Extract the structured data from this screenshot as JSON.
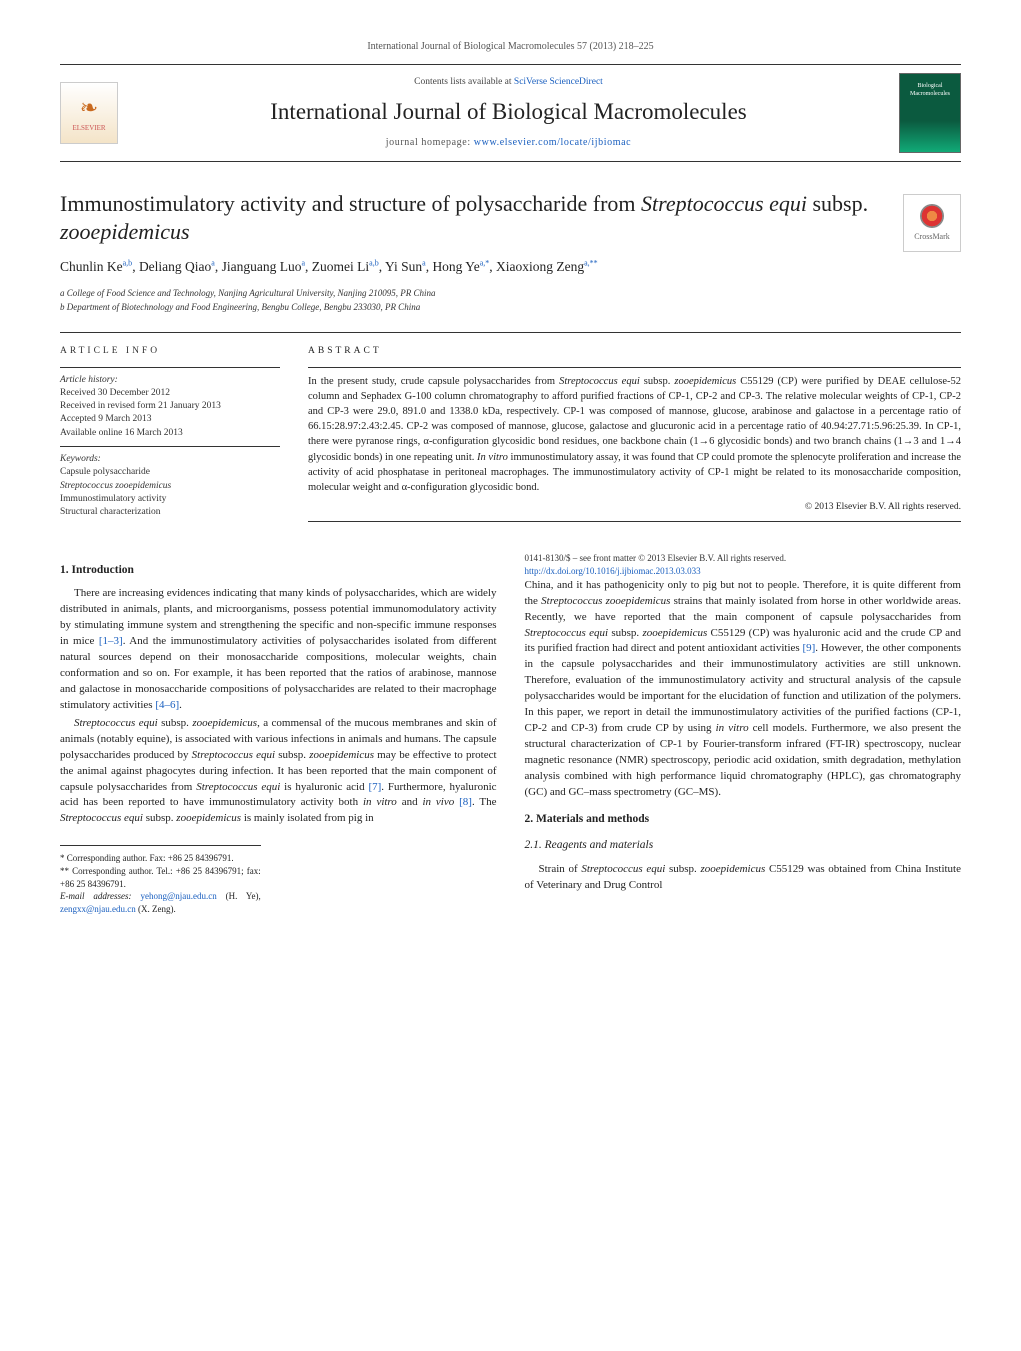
{
  "header": {
    "citation": "International Journal of Biological Macromolecules 57 (2013) 218–225",
    "contents_prefix": "Contents lists available at ",
    "contents_link": "SciVerse ScienceDirect",
    "journal_name": "International Journal of Biological Macromolecules",
    "homepage_prefix": "journal homepage: ",
    "homepage_url": "www.elsevier.com/locate/ijbiomac",
    "elsevier_label": "ELSEVIER",
    "cover_label": "Biological Macromolecules",
    "crossmark_label": "CrossMark"
  },
  "title": {
    "line": "Immunostimulatory activity and structure of polysaccharide from Streptococcus equi subsp. zooepidemicus"
  },
  "authors": "Chunlin Ke a,b, Deliang Qiao a, Jianguang Luo a, Zuomei Li a,b, Yi Sun a, Hong Ye a,*, Xiaoxiong Zeng a,**",
  "affiliations": {
    "a": "a College of Food Science and Technology, Nanjing Agricultural University, Nanjing 210095, PR China",
    "b": "b Department of Biotechnology and Food Engineering, Bengbu College, Bengbu 233030, PR China"
  },
  "article_info": {
    "heading": "article info",
    "history_label": "Article history:",
    "received": "Received 30 December 2012",
    "revised": "Received in revised form 21 January 2013",
    "accepted": "Accepted 9 March 2013",
    "online": "Available online 16 March 2013",
    "keywords_label": "Keywords:",
    "keywords": [
      "Capsule polysaccharide",
      "Streptococcus zooepidemicus",
      "Immunostimulatory activity",
      "Structural characterization"
    ]
  },
  "abstract": {
    "heading": "abstract",
    "text": "In the present study, crude capsule polysaccharides from Streptococcus equi subsp. zooepidemicus C55129 (CP) were purified by DEAE cellulose-52 column and Sephadex G-100 column chromatography to afford purified fractions of CP-1, CP-2 and CP-3. The relative molecular weights of CP-1, CP-2 and CP-3 were 29.0, 891.0 and 1338.0 kDa, respectively. CP-1 was composed of mannose, glucose, arabinose and galactose in a percentage ratio of 66.15:28.97:2.43:2.45. CP-2 was composed of mannose, glucose, galactose and glucuronic acid in a percentage ratio of 40.94:27.71:5.96:25.39. In CP-1, there were pyranose rings, α-configuration glycosidic bond residues, one backbone chain (1→6 glycosidic bonds) and two branch chains (1→3 and 1→4 glycosidic bonds) in one repeating unit. In vitro immunostimulatory assay, it was found that CP could promote the splenocyte proliferation and increase the activity of acid phosphatase in peritoneal macrophages. The immunostimulatory activity of CP-1 might be related to its monosaccharide composition, molecular weight and α-configuration glycosidic bond.",
    "copyright": "© 2013 Elsevier B.V. All rights reserved."
  },
  "sections": {
    "intro_heading": "1.  Introduction",
    "intro_p1": "There are increasing evidences indicating that many kinds of polysaccharides, which are widely distributed in animals, plants, and microorganisms, possess potential immunomodulatory activity by stimulating immune system and strengthening the specific and non-specific immune responses in mice [1–3]. And the immunostimulatory activities of polysaccharides isolated from different natural sources depend on their monosaccharide compositions, molecular weights, chain conformation and so on. For example, it has been reported that the ratios of arabinose, mannose and galactose in monosaccharide compositions of polysaccharides are related to their macrophage stimulatory activities [4–6].",
    "intro_p2": "Streptococcus equi subsp. zooepidemicus, a commensal of the mucous membranes and skin of animals (notably equine), is associated with various infections in animals and humans. The capsule polysaccharides produced by Streptococcus equi subsp. zooepidemicus may be effective to protect the animal against phagocytes during infection. It has been reported that the main component of capsule polysaccharides from Streptococcus equi is hyaluronic acid [7]. Furthermore, hyaluronic acid has been reported to have immunostimulatory activity both in vitro and in vivo [8]. The Streptococcus equi subsp. zooepidemicus is mainly isolated from pig in",
    "col2_p1": "China, and it has pathogenicity only to pig but not to people. Therefore, it is quite different from the Streptococcus zooepidemicus strains that mainly isolated from horse in other worldwide areas. Recently, we have reported that the main component of capsule polysaccharides from Streptococcus equi subsp. zooepidemicus C55129 (CP) was hyaluronic acid and the crude CP and its purified fraction had direct and potent antioxidant activities [9]. However, the other components in the capsule polysaccharides and their immunostimulatory activities are still unknown. Therefore, evaluation of the immunostimulatory activity and structural analysis of the capsule polysaccharides would be important for the elucidation of function and utilization of the polymers. In this paper, we report in detail the immunostimulatory activities of the purified factions (CP-1, CP-2 and CP-3) from crude CP by using in vitro cell models. Furthermore, we also present the structural characterization of CP-1 by Fourier-transform infrared (FT-IR) spectroscopy, nuclear magnetic resonance (NMR) spectroscopy, periodic acid oxidation, smith degradation, methylation analysis combined with high performance liquid chromatography (HPLC), gas chromatography (GC) and GC–mass spectrometry (GC–MS).",
    "methods_heading": "2.  Materials and methods",
    "reagents_heading": "2.1.  Reagents and materials",
    "reagents_p": "Strain of Streptococcus equi subsp. zooepidemicus C55129 was obtained from China Institute of Veterinary and Drug Control"
  },
  "footnotes": {
    "f1": "* Corresponding author. Fax: +86 25 84396791.",
    "f2": "** Corresponding author. Tel.: +86 25 84396791; fax: +86 25 84396791.",
    "emails_label": "E-mail addresses: ",
    "email1": "yehong@njau.edu.cn",
    "email1_who": " (H. Ye), ",
    "email2": "zengxx@njau.edu.cn",
    "email2_who": " (X. Zeng)."
  },
  "doi": {
    "line1": "0141-8130/$ – see front matter © 2013 Elsevier B.V. All rights reserved.",
    "line2_url": "http://dx.doi.org/10.1016/j.ijbiomac.2013.03.033"
  }
}
